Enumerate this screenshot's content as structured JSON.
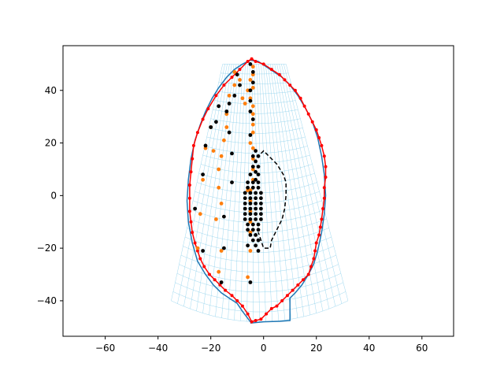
{
  "chart_data": {
    "type": "scatter",
    "title": "",
    "xlabel": "",
    "ylabel": "",
    "xlim": [
      -76,
      72
    ],
    "ylim": [
      -53.5,
      57
    ],
    "x_ticks": [
      -60,
      -40,
      -20,
      0,
      20,
      40,
      60
    ],
    "y_ticks": [
      -40,
      -20,
      0,
      20,
      40
    ],
    "grid": false,
    "legend": "none",
    "mesh": {
      "color": "#87ceeb",
      "top_left": [
        -15.5,
        50
      ],
      "top_right": [
        8.5,
        50
      ],
      "bottom_left": [
        -35,
        -40
      ],
      "bottom_right": [
        32,
        -40
      ],
      "bottom_center_y": -48,
      "rows": 26,
      "cols": 28
    },
    "series": [
      {
        "color": "#ff0000",
        "points": [
          [
            -4.5,
            -48
          ],
          [
            -3,
            -47.5
          ],
          [
            -1,
            -47
          ],
          [
            1,
            -45
          ],
          [
            3,
            -43
          ],
          [
            5,
            -42
          ],
          [
            7,
            -40
          ],
          [
            9,
            -38
          ],
          [
            11,
            -36
          ],
          [
            13,
            -34
          ],
          [
            15,
            -32
          ],
          [
            17,
            -30
          ],
          [
            18,
            -27
          ],
          [
            19,
            -24
          ],
          [
            19.5,
            -21
          ],
          [
            20,
            -18
          ],
          [
            21,
            -15
          ],
          [
            21.5,
            -12
          ],
          [
            22,
            -9
          ],
          [
            22.5,
            -5
          ],
          [
            23,
            -1
          ],
          [
            23,
            3
          ],
          [
            23.5,
            7
          ],
          [
            23.5,
            11
          ],
          [
            23,
            15
          ],
          [
            22,
            19
          ],
          [
            21,
            22
          ],
          [
            20,
            25
          ],
          [
            18.5,
            28
          ],
          [
            17,
            31
          ],
          [
            15.5,
            34
          ],
          [
            14,
            37
          ],
          [
            12,
            40
          ],
          [
            10,
            42
          ],
          [
            8,
            44
          ],
          [
            6,
            46
          ],
          [
            3,
            48
          ],
          [
            0,
            50
          ],
          [
            -3,
            51
          ],
          [
            -4.5,
            52
          ],
          [
            -6,
            51
          ],
          [
            -9,
            48
          ],
          [
            -12,
            45
          ],
          [
            -15,
            42
          ],
          [
            -18,
            38
          ],
          [
            -21,
            33
          ],
          [
            -23,
            29
          ],
          [
            -25,
            24
          ],
          [
            -26.5,
            19
          ],
          [
            -27,
            14
          ],
          [
            -27.5,
            9
          ],
          [
            -28,
            4
          ],
          [
            -28,
            -1
          ],
          [
            -28,
            -6
          ],
          [
            -27.5,
            -10
          ],
          [
            -27,
            -14
          ],
          [
            -26,
            -18
          ],
          [
            -25,
            -21
          ],
          [
            -24,
            -24
          ],
          [
            -22.5,
            -27
          ],
          [
            -20.5,
            -30
          ],
          [
            -18.5,
            -32
          ],
          [
            -16.5,
            -34
          ],
          [
            -14.5,
            -36
          ],
          [
            -12,
            -38
          ],
          [
            -10,
            -40
          ],
          [
            -8,
            -42
          ],
          [
            -6,
            -45
          ]
        ]
      },
      {
        "color": "#ff7f0e",
        "points": [
          [
            -4,
            49
          ],
          [
            -4,
            46
          ],
          [
            -5,
            44
          ],
          [
            -4,
            41
          ],
          [
            -5,
            37
          ],
          [
            -4,
            34
          ],
          [
            -4,
            31
          ],
          [
            -4,
            27
          ],
          [
            -4,
            24
          ],
          [
            -5,
            20
          ],
          [
            -4,
            18
          ],
          [
            -4,
            14
          ],
          [
            -4,
            10
          ],
          [
            -4,
            6
          ],
          [
            -5,
            2
          ],
          [
            -5,
            -2
          ],
          [
            -5,
            -6
          ],
          [
            -5,
            -10
          ],
          [
            -5,
            -14
          ],
          [
            -5,
            -21
          ],
          [
            -6,
            -31
          ],
          [
            -8,
            37
          ],
          [
            -9,
            44
          ],
          [
            -11,
            47
          ],
          [
            -11,
            42
          ],
          [
            -13,
            38
          ],
          [
            -14,
            31
          ],
          [
            -14,
            26
          ],
          [
            -15,
            21
          ],
          [
            -16,
            15
          ],
          [
            -17,
            10
          ],
          [
            -17,
            3
          ],
          [
            -16,
            -3
          ],
          [
            -18,
            -9
          ],
          [
            -16,
            -21
          ],
          [
            -17,
            -29
          ],
          [
            -19,
            17
          ],
          [
            -20,
            26
          ],
          [
            -22,
            18
          ],
          [
            -23,
            6
          ],
          [
            -24,
            -7
          ],
          [
            -25,
            -20
          ],
          [
            -6,
            40
          ],
          [
            -7,
            35
          ],
          [
            -6,
            2
          ]
        ]
      },
      {
        "color": "#000000",
        "points": [
          [
            -5,
            50
          ],
          [
            -4,
            47
          ],
          [
            -4,
            43
          ],
          [
            -5,
            40
          ],
          [
            -5,
            36
          ],
          [
            -5,
            32
          ],
          [
            -4,
            29
          ],
          [
            -5,
            23
          ],
          [
            -9,
            42
          ],
          [
            -10,
            46
          ],
          [
            -11,
            38
          ],
          [
            -13,
            35
          ],
          [
            -14,
            32
          ],
          [
            -13,
            24
          ],
          [
            -12,
            16
          ],
          [
            -12,
            5
          ],
          [
            -15,
            -8
          ],
          [
            -15,
            -20
          ],
          [
            -16,
            -33
          ],
          [
            -17,
            34
          ],
          [
            -18,
            28
          ],
          [
            -20,
            26
          ],
          [
            -22,
            19
          ],
          [
            -23,
            8
          ],
          [
            -26,
            -5
          ],
          [
            -23,
            -21
          ],
          [
            -5,
            -33
          ],
          [
            -2,
            -21
          ],
          [
            -3,
            17
          ],
          [
            -4,
            15
          ],
          [
            -2,
            15
          ],
          [
            -3,
            13
          ],
          [
            -4,
            11
          ],
          [
            -2,
            11
          ],
          [
            -3,
            9
          ],
          [
            -5,
            8
          ],
          [
            -2,
            8
          ],
          [
            -3,
            6
          ],
          [
            -6,
            5
          ],
          [
            -4,
            5
          ],
          [
            -2,
            5
          ],
          [
            -6,
            3
          ],
          [
            -4,
            3
          ],
          [
            -2,
            3
          ],
          [
            -7,
            1
          ],
          [
            -5,
            1
          ],
          [
            -3,
            1
          ],
          [
            -1,
            1
          ],
          [
            -7,
            -1
          ],
          [
            -5,
            -1
          ],
          [
            -3,
            -1
          ],
          [
            -1,
            -1
          ],
          [
            -7,
            -3
          ],
          [
            -5,
            -3
          ],
          [
            -3,
            -3
          ],
          [
            -1,
            -3
          ],
          [
            -7,
            -5
          ],
          [
            -5,
            -5
          ],
          [
            -3,
            -5
          ],
          [
            -1,
            -5
          ],
          [
            -7,
            -7
          ],
          [
            -5,
            -7
          ],
          [
            -3,
            -7
          ],
          [
            -1,
            -7
          ],
          [
            -7,
            -9
          ],
          [
            -5,
            -9
          ],
          [
            -3,
            -9
          ],
          [
            -1,
            -9
          ],
          [
            -6,
            -11
          ],
          [
            -4,
            -11
          ],
          [
            -2,
            -11
          ],
          [
            -6,
            -13
          ],
          [
            -4,
            -13
          ],
          [
            -2,
            -13
          ],
          [
            -5,
            -15
          ],
          [
            -3,
            -15
          ],
          [
            -4,
            -17
          ],
          [
            -2,
            -17
          ],
          [
            -3,
            -19
          ],
          [
            -6,
            -19
          ]
        ]
      }
    ],
    "lines": [
      {
        "color": "#1f77b4",
        "style": "solid",
        "points": [
          [
            -5,
            -48
          ],
          [
            -8,
            -44
          ],
          [
            -10,
            -41
          ],
          [
            -13,
            -39
          ],
          [
            -16,
            -37
          ],
          [
            -19,
            -34
          ],
          [
            -22,
            -30
          ],
          [
            -25,
            -25
          ],
          [
            -27,
            -18
          ],
          [
            -28.5,
            -10
          ],
          [
            -29,
            -2
          ],
          [
            -28.5,
            6
          ],
          [
            -27.5,
            14
          ],
          [
            -26,
            21
          ],
          [
            -24,
            27
          ],
          [
            -22,
            32
          ],
          [
            -19.5,
            37
          ],
          [
            -17,
            41
          ],
          [
            -14,
            45
          ],
          [
            -11,
            48
          ],
          [
            -8,
            50
          ],
          [
            -5,
            51.5
          ],
          [
            -2,
            51
          ],
          [
            1,
            49
          ],
          [
            4,
            47
          ],
          [
            7,
            45
          ],
          [
            10,
            42
          ],
          [
            13,
            38
          ],
          [
            16,
            33
          ],
          [
            18.5,
            28
          ],
          [
            20.5,
            22
          ],
          [
            22,
            15
          ],
          [
            23,
            8
          ],
          [
            23.5,
            0
          ],
          [
            23,
            -7
          ],
          [
            22,
            -14
          ],
          [
            20.5,
            -21
          ],
          [
            19,
            -26
          ],
          [
            17,
            -30
          ],
          [
            14.5,
            -34
          ],
          [
            12,
            -37
          ],
          [
            10,
            -39
          ],
          [
            10,
            -47.5
          ],
          [
            6,
            -47.8
          ],
          [
            0,
            -48
          ],
          [
            -5,
            -48.5
          ]
        ]
      },
      {
        "color": "#000000",
        "style": "dashed",
        "points": [
          [
            -1,
            16
          ],
          [
            0,
            17
          ],
          [
            2,
            15
          ],
          [
            5,
            12
          ],
          [
            7.5,
            8
          ],
          [
            8.5,
            5
          ],
          [
            8.5,
            0
          ],
          [
            8,
            -5
          ],
          [
            7,
            -9
          ],
          [
            5,
            -13
          ],
          [
            3,
            -17
          ],
          [
            2.5,
            -20
          ],
          [
            0,
            -20
          ],
          [
            -1,
            -17
          ],
          [
            -2,
            -14
          ]
        ]
      }
    ]
  }
}
